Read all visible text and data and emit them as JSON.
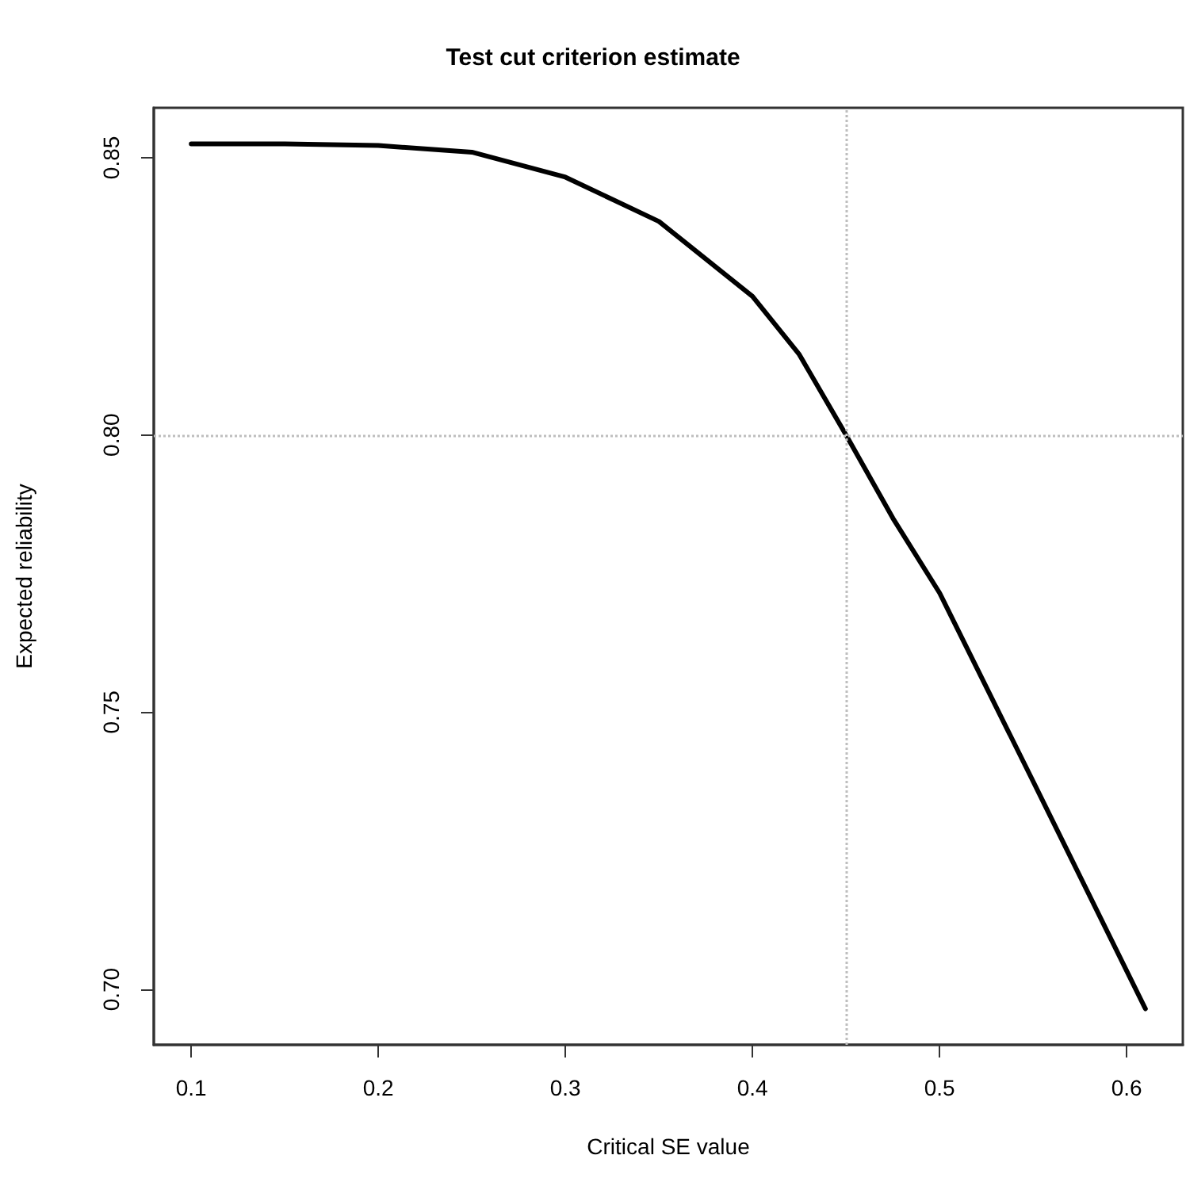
{
  "chart_data": {
    "type": "line",
    "title": "Test cut criterion estimate",
    "xlabel": "Critical SE value",
    "ylabel": "Expected reliability",
    "x": [
      0.1,
      0.15,
      0.2,
      0.25,
      0.3,
      0.35,
      0.4,
      0.425,
      0.45,
      0.475,
      0.5,
      0.55,
      0.61
    ],
    "series": [
      {
        "color": "#000000",
        "values": [
          0.8525,
          0.8525,
          0.8522,
          0.851,
          0.8465,
          0.8385,
          0.825,
          0.8145,
          0.8,
          0.785,
          0.7715,
          0.7375,
          0.6965
        ]
      }
    ],
    "xlim": [
      0.08,
      0.63
    ],
    "xticks": [
      0.1,
      0.2,
      0.3,
      0.4,
      0.5,
      0.6
    ],
    "ylim": [
      0.69,
      0.859
    ],
    "yticks": [
      {
        "value": 0.7,
        "label": "0.70"
      },
      0.75,
      {
        "value": 0.8,
        "label": "0.80"
      },
      0.85
    ],
    "ref_lines": [
      {
        "axis": "x",
        "value": 0.45,
        "color": "#bebebe",
        "line_style": "dotted"
      },
      {
        "axis": "y",
        "value": 0.8,
        "color": "#bebebe",
        "line_style": "dotted"
      }
    ],
    "grid": false,
    "marker": "none",
    "line_style": "solid"
  }
}
